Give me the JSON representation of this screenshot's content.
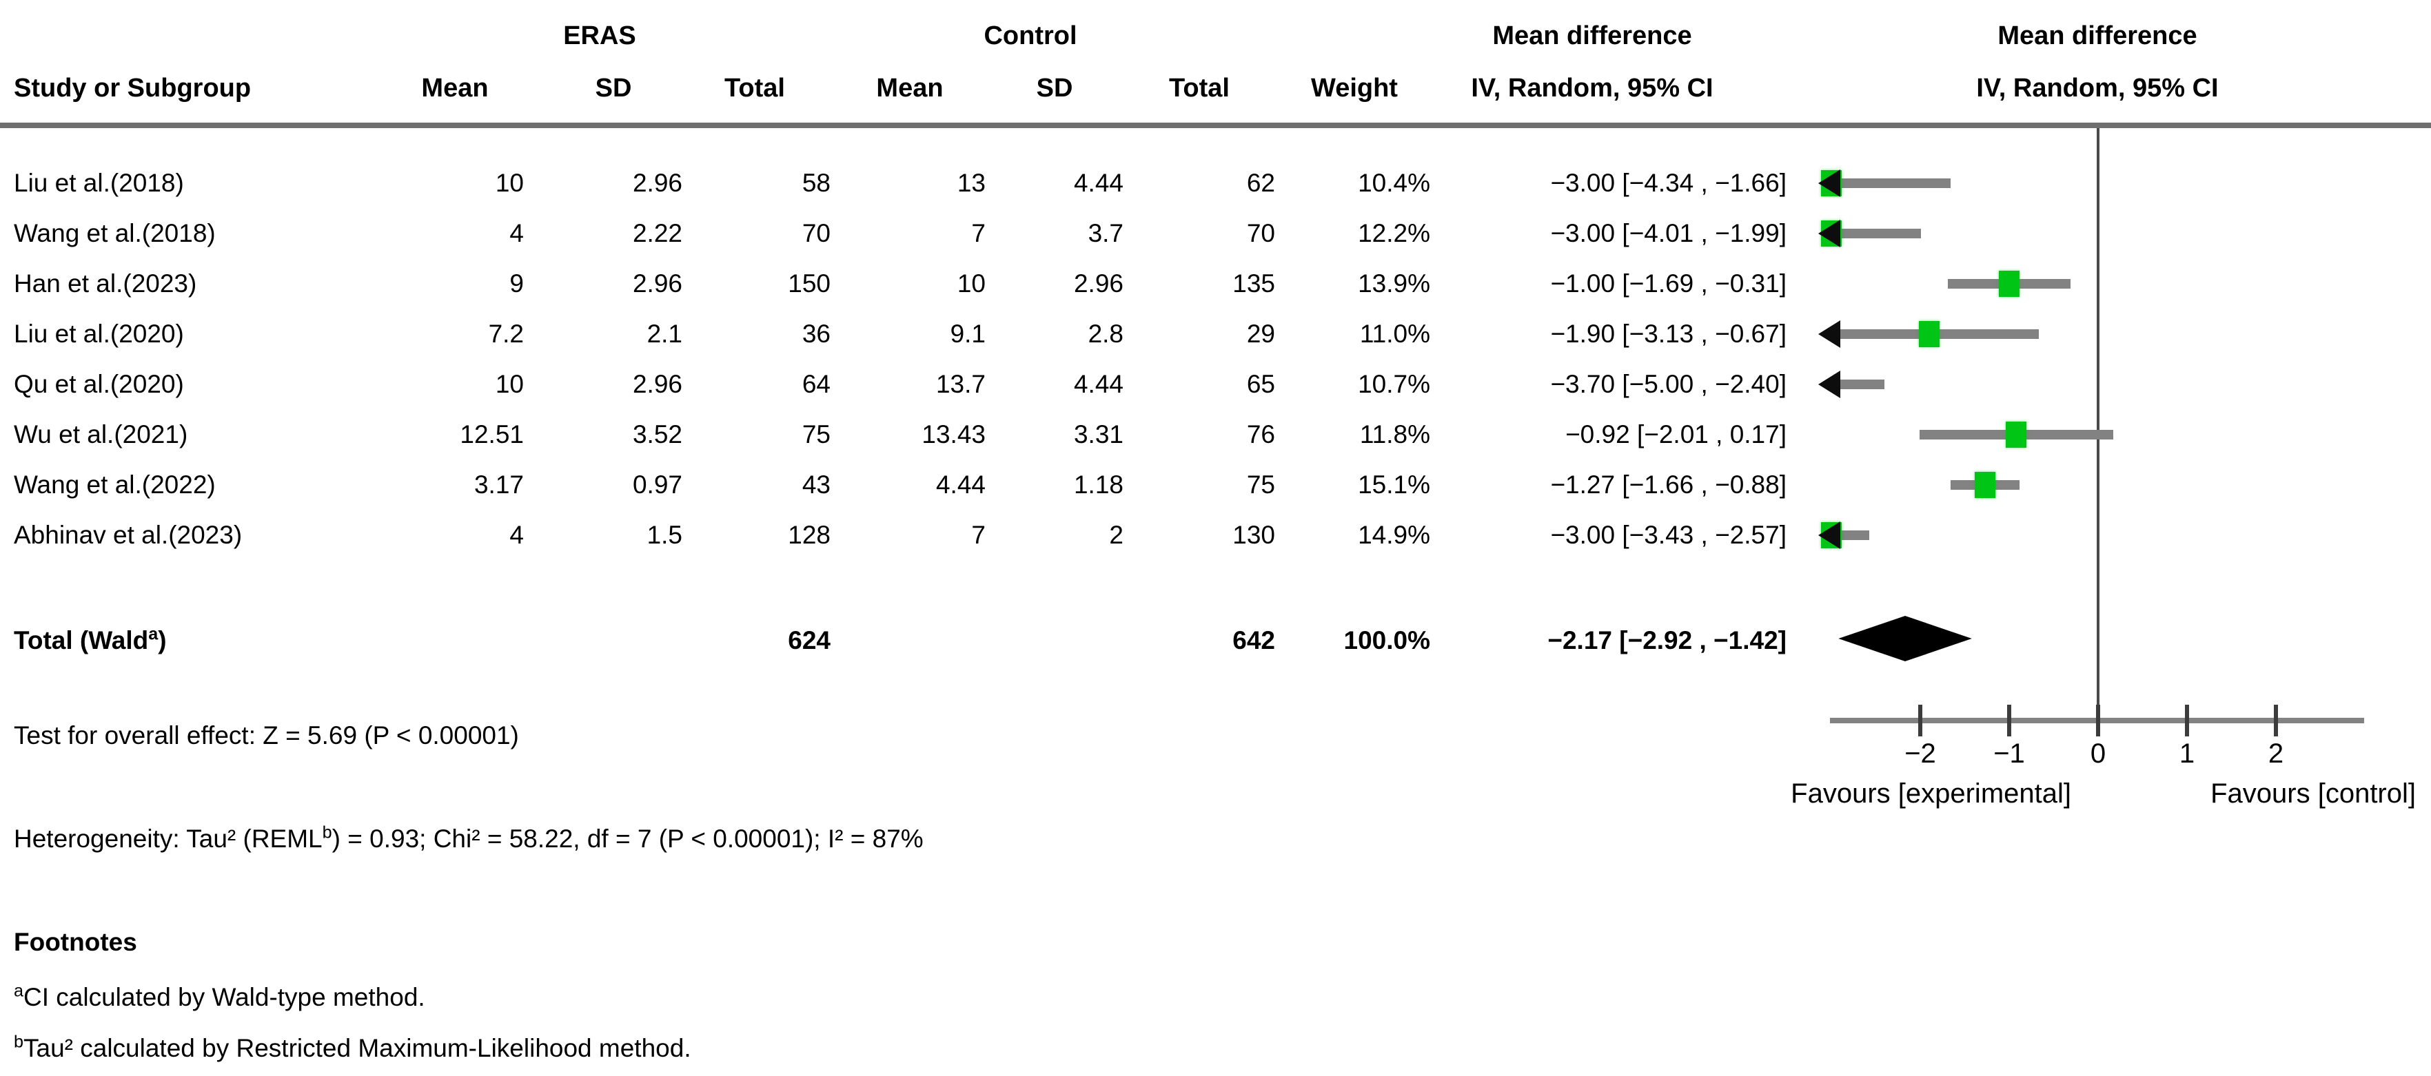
{
  "header": {
    "study_col": "Study or Subgroup",
    "eras_label": "ERAS",
    "control_label": "Control",
    "mean_label": "Mean",
    "sd_label": "SD",
    "total_label": "Total",
    "weight_label": "Weight",
    "md_label": "Mean difference",
    "ci_method_label": "IV, Random, 95% CI"
  },
  "studies": [
    {
      "name": "Liu et al.(2018)",
      "eras_mean": "10",
      "eras_sd": "2.96",
      "eras_total": "58",
      "ctrl_mean": "13",
      "ctrl_sd": "4.44",
      "ctrl_total": "62",
      "weight": "10.4%",
      "ci_text": "−3.00 [−4.34 , −1.66]"
    },
    {
      "name": "Wang et al.(2018)",
      "eras_mean": "4",
      "eras_sd": "2.22",
      "eras_total": "70",
      "ctrl_mean": "7",
      "ctrl_sd": "3.7",
      "ctrl_total": "70",
      "weight": "12.2%",
      "ci_text": "−3.00 [−4.01 , −1.99]"
    },
    {
      "name": "Han et al.(2023)",
      "eras_mean": "9",
      "eras_sd": "2.96",
      "eras_total": "150",
      "ctrl_mean": "10",
      "ctrl_sd": "2.96",
      "ctrl_total": "135",
      "weight": "13.9%",
      "ci_text": "−1.00 [−1.69 , −0.31]"
    },
    {
      "name": "Liu et al.(2020)",
      "eras_mean": "7.2",
      "eras_sd": "2.1",
      "eras_total": "36",
      "ctrl_mean": "9.1",
      "ctrl_sd": "2.8",
      "ctrl_total": "29",
      "weight": "11.0%",
      "ci_text": "−1.90 [−3.13 , −0.67]"
    },
    {
      "name": "Qu et al.(2020)",
      "eras_mean": "10",
      "eras_sd": "2.96",
      "eras_total": "64",
      "ctrl_mean": "13.7",
      "ctrl_sd": "4.44",
      "ctrl_total": "65",
      "weight": "10.7%",
      "ci_text": "−3.70 [−5.00 , −2.40]"
    },
    {
      "name": "Wu et al.(2021)",
      "eras_mean": "12.51",
      "eras_sd": "3.52",
      "eras_total": "75",
      "ctrl_mean": "13.43",
      "ctrl_sd": "3.31",
      "ctrl_total": "76",
      "weight": "11.8%",
      "ci_text": "−0.92 [−2.01 ,  0.17]"
    },
    {
      "name": "Wang et al.(2022)",
      "eras_mean": "3.17",
      "eras_sd": "0.97",
      "eras_total": "43",
      "ctrl_mean": "4.44",
      "ctrl_sd": "1.18",
      "ctrl_total": "75",
      "weight": "15.1%",
      "ci_text": "−1.27 [−1.66 , −0.88]"
    },
    {
      "name": "Abhinav et al.(2023)",
      "eras_mean": "4",
      "eras_sd": "1.5",
      "eras_total": "128",
      "ctrl_mean": "7",
      "ctrl_sd": "2",
      "ctrl_total": "130",
      "weight": "14.9%",
      "ci_text": "−3.00 [−3.43 , −2.57]"
    }
  ],
  "total": {
    "label_pre": "Total (Wald",
    "label_sup": "a",
    "label_post": ")",
    "eras_total": "624",
    "ctrl_total": "642",
    "weight": "100.0%",
    "ci_text": "−2.17 [−2.92 , −1.42]"
  },
  "stats": {
    "overall_effect": "Test for overall effect: Z = 5.69 (P < 0.00001)",
    "heterogeneity_pre": "Heterogeneity: Tau² (REML",
    "heterogeneity_sup": "b",
    "heterogeneity_post": ") = 0.93; Chi² = 58.22, df = 7 (P < 0.00001); I² = 87%"
  },
  "footnotes": {
    "title": "Footnotes",
    "a_sup": "a",
    "a_text": "CI calculated by Wald-type method.",
    "b_sup": "b",
    "b_text": "Tau² calculated by Restricted Maximum-Likelihood method."
  },
  "axis": {
    "favours_left": "Favours [experimental]",
    "favours_right": "Favours [control]"
  },
  "colors": {
    "marker_green": "#00c514",
    "ci_gray": "#828282",
    "diamond_black": "#000000"
  },
  "chart_data": {
    "type": "forest",
    "title": "Mean difference — IV, Random, 95% CI",
    "effect_measure": "Mean difference",
    "model": "IV, Random, 95% CI",
    "x_axis": {
      "ticks": [
        -2,
        -1,
        0,
        1,
        2
      ],
      "zero_line": 0,
      "visible_range": [
        -3.05,
        3.0
      ],
      "label_left": "Favours [experimental]",
      "label_right": "Favours [control]"
    },
    "studies": [
      {
        "name": "Liu et al.(2018)",
        "estimate": -3.0,
        "ci_low": -4.34,
        "ci_high": -1.66,
        "weight_pct": 10.4
      },
      {
        "name": "Wang et al.(2018)",
        "estimate": -3.0,
        "ci_low": -4.01,
        "ci_high": -1.99,
        "weight_pct": 12.2
      },
      {
        "name": "Han et al.(2023)",
        "estimate": -1.0,
        "ci_low": -1.69,
        "ci_high": -0.31,
        "weight_pct": 13.9
      },
      {
        "name": "Liu et al.(2020)",
        "estimate": -1.9,
        "ci_low": -3.13,
        "ci_high": -0.67,
        "weight_pct": 11.0
      },
      {
        "name": "Qu et al.(2020)",
        "estimate": -3.7,
        "ci_low": -5.0,
        "ci_high": -2.4,
        "weight_pct": 10.7
      },
      {
        "name": "Wu et al.(2021)",
        "estimate": -0.92,
        "ci_low": -2.01,
        "ci_high": 0.17,
        "weight_pct": 11.8
      },
      {
        "name": "Wang et al.(2022)",
        "estimate": -1.27,
        "ci_low": -1.66,
        "ci_high": -0.88,
        "weight_pct": 15.1
      },
      {
        "name": "Abhinav et al.(2023)",
        "estimate": -3.0,
        "ci_low": -3.43,
        "ci_high": -2.57,
        "weight_pct": 14.9
      }
    ],
    "overall": {
      "label": "Total (Wald a)",
      "estimate": -2.17,
      "ci_low": -2.92,
      "ci_high": -1.42,
      "weight_pct": 100.0,
      "marker": "diamond",
      "z": 5.69,
      "p": "< 0.00001",
      "tau2": 0.93,
      "chi2": 58.22,
      "df": 7,
      "i2_pct": 87
    }
  }
}
